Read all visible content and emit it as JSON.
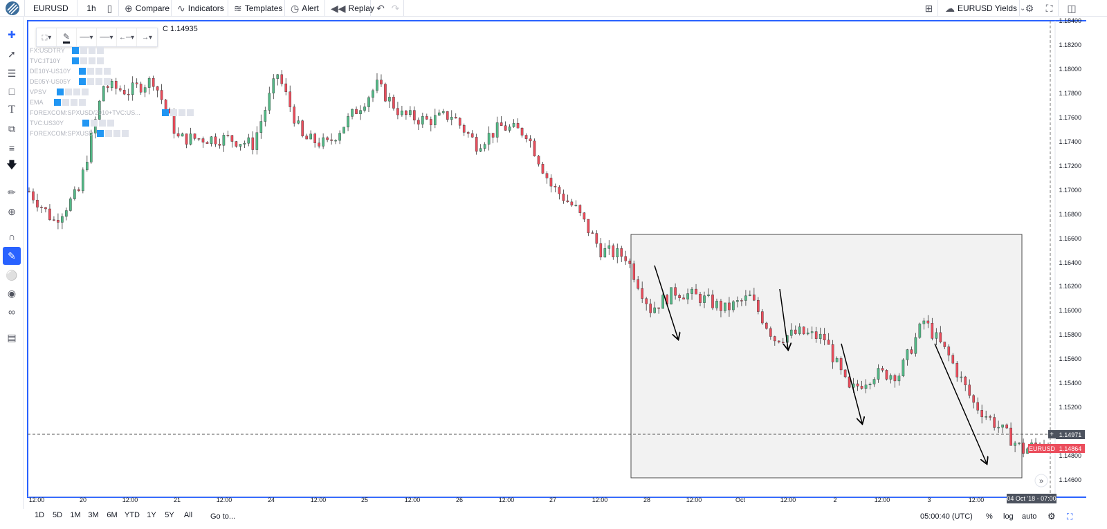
{
  "toolbar": {
    "symbol": "EURUSD",
    "interval": "1h",
    "compare": "Compare",
    "indicators": "Indicators",
    "templates": "Templates",
    "alert": "Alert",
    "replay": "Replay",
    "layout_name": "EURUSD Yields"
  },
  "legend": {
    "close": "C 1.14935"
  },
  "overlays": [
    "FX:USDTRY",
    "TVC:IT10Y",
    "DE10Y-US10Y",
    "DE05Y-US05Y",
    "VPSV",
    "EMA",
    "FOREXCOM:SPXUSD/2910+TVC:US...",
    "TVC:US30Y",
    "FOREXCOM:SPXUSD"
  ],
  "price_axis": {
    "ticks": [
      "1.18400",
      "1.18200",
      "1.18000",
      "1.17800",
      "1.17600",
      "1.17400",
      "1.17200",
      "1.17000",
      "1.16800",
      "1.16600",
      "1.16400",
      "1.16200",
      "1.16000",
      "1.15800",
      "1.15600",
      "1.15400",
      "1.15200",
      "1.14800",
      "1.14600"
    ],
    "crosshair_price": "1.14971",
    "symbol_tag": "EURUSD",
    "last_price": "1.14864"
  },
  "time_axis": {
    "ticks": [
      "12:00",
      "20",
      "12:00",
      "21",
      "12:00",
      "24",
      "12:00",
      "25",
      "12:00",
      "26",
      "12:00",
      "27",
      "12:00",
      "28",
      "12:00",
      "Oct",
      "12:00",
      "2",
      "12:00",
      "3",
      "12:00"
    ],
    "crosshair_time": "04 Oct '18 - 07:00"
  },
  "bottom": {
    "ranges": [
      "1D",
      "5D",
      "1M",
      "3M",
      "6M",
      "YTD",
      "1Y",
      "5Y",
      "All"
    ],
    "goto": "Go to...",
    "clock": "05:00:40 (UTC)",
    "pct": "%",
    "log": "log",
    "auto": "auto"
  },
  "colors": {
    "up": "#53b987",
    "down": "#eb4d5c",
    "accent": "#2962ff",
    "last_price_bg": "#eb4d5c",
    "crosshair_bg": "#4c525e"
  },
  "chart_data": {
    "type": "candlestick",
    "symbol": "EURUSD",
    "interval": "1h",
    "close_points": [
      [
        "20 Sep 00:00",
        1.17
      ],
      [
        "20 Sep 06:00",
        1.1675
      ],
      [
        "20 Sep 12:00",
        1.17
      ],
      [
        "20 Sep 18:00",
        1.179
      ],
      [
        "21 Sep 00:00",
        1.1785
      ],
      [
        "21 Sep 06:00",
        1.1795
      ],
      [
        "21 Sep 12:00",
        1.1745
      ],
      [
        "21 Sep 18:00",
        1.1745
      ],
      [
        "24 Sep 00:00",
        1.1745
      ],
      [
        "24 Sep 06:00",
        1.174
      ],
      [
        "24 Sep 12:00",
        1.18
      ],
      [
        "24 Sep 18:00",
        1.1745
      ],
      [
        "25 Sep 00:00",
        1.174
      ],
      [
        "25 Sep 06:00",
        1.1765
      ],
      [
        "25 Sep 12:00",
        1.179
      ],
      [
        "25 Sep 18:00",
        1.1765
      ],
      [
        "26 Sep 00:00",
        1.176
      ],
      [
        "26 Sep 06:00",
        1.1765
      ],
      [
        "26 Sep 12:00",
        1.174
      ],
      [
        "26 Sep 18:00",
        1.1755
      ],
      [
        "27 Sep 00:00",
        1.175
      ],
      [
        "27 Sep 06:00",
        1.1705
      ],
      [
        "27 Sep 12:00",
        1.1685
      ],
      [
        "27 Sep 18:00",
        1.165
      ],
      [
        "28 Sep 00:00",
        1.1645
      ],
      [
        "28 Sep 06:00",
        1.16
      ],
      [
        "28 Sep 12:00",
        1.1615
      ],
      [
        "28 Sep 18:00",
        1.161
      ],
      [
        "1 Oct 00:00",
        1.16
      ],
      [
        "1 Oct 06:00",
        1.161
      ],
      [
        "1 Oct 12:00",
        1.1575
      ],
      [
        "1 Oct 18:00",
        1.158
      ],
      [
        "2 Oct 00:00",
        1.1575
      ],
      [
        "2 Oct 06:00",
        1.153
      ],
      [
        "2 Oct 12:00",
        1.1545
      ],
      [
        "2 Oct 18:00",
        1.1545
      ],
      [
        "3 Oct 00:00",
        1.159
      ],
      [
        "3 Oct 06:00",
        1.156
      ],
      [
        "3 Oct 12:00",
        1.152
      ],
      [
        "3 Oct 18:00",
        1.15
      ],
      [
        "4 Oct 00:00",
        1.148
      ],
      [
        "4 Oct 06:00",
        1.149
      ]
    ],
    "y_range": [
      1.1455,
      1.1845
    ],
    "last": 1.14864,
    "crosshair": 1.14971,
    "annotations": [
      "shaded rectangle",
      "4 downward arrows"
    ]
  }
}
